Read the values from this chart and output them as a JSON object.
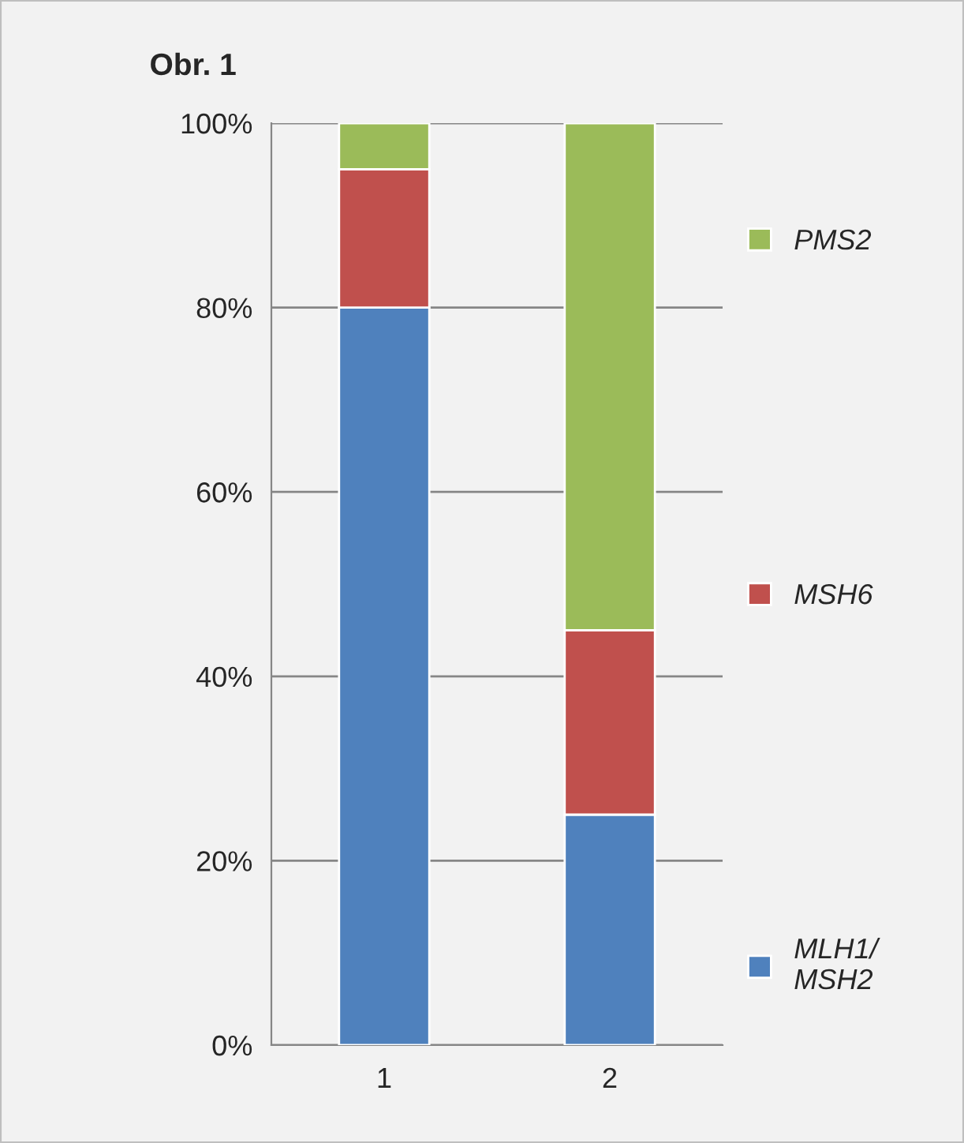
{
  "chart_data": {
    "type": "bar",
    "title": "Obr. 1",
    "stacked": true,
    "categories": [
      "1",
      "2"
    ],
    "series": [
      {
        "name": "MLH1/\nMSH2",
        "color": "#4f81bd",
        "values": [
          80,
          25
        ]
      },
      {
        "name": "MSH6",
        "color": "#c0504d",
        "values": [
          15,
          20
        ]
      },
      {
        "name": "PMS2",
        "color": "#9bbb59",
        "values": [
          5,
          55
        ]
      }
    ],
    "ylim": [
      0,
      100
    ],
    "yticks": [
      {
        "value": 0,
        "label": "0%"
      },
      {
        "value": 20,
        "label": "20%"
      },
      {
        "value": 40,
        "label": "40%"
      },
      {
        "value": 60,
        "label": "60%"
      },
      {
        "value": 80,
        "label": "80%"
      },
      {
        "value": 100,
        "label": "100%"
      }
    ],
    "grid": "y",
    "legend": "right"
  }
}
